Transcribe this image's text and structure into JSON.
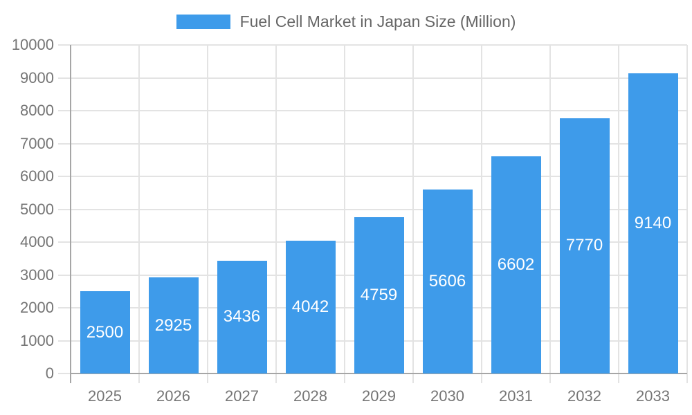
{
  "chart_data": {
    "type": "bar",
    "title": "Fuel Cell Market in Japan Size (Million)",
    "categories": [
      "2025",
      "2026",
      "2027",
      "2028",
      "2029",
      "2030",
      "2031",
      "2032",
      "2033"
    ],
    "values": [
      2500,
      2925,
      3436,
      4042,
      4759,
      5606,
      6602,
      7770,
      9140
    ],
    "xlabel": "",
    "ylabel": "",
    "ylim": [
      0,
      10000
    ],
    "ytick_step": 1000,
    "ytick_labels": [
      "0",
      "1000",
      "2000",
      "3000",
      "4000",
      "5000",
      "6000",
      "7000",
      "8000",
      "9000",
      "10000"
    ],
    "grid": true,
    "legend_position": "top",
    "value_labels": "inside-center"
  },
  "colors": {
    "bar": "#3E9BEA",
    "grid": "#E3E3E3",
    "axis": "#A6A6A6",
    "tick_label": "#757575",
    "legend_text": "#666666",
    "value_label": "#FFFFFF",
    "background": "#FFFFFF"
  }
}
